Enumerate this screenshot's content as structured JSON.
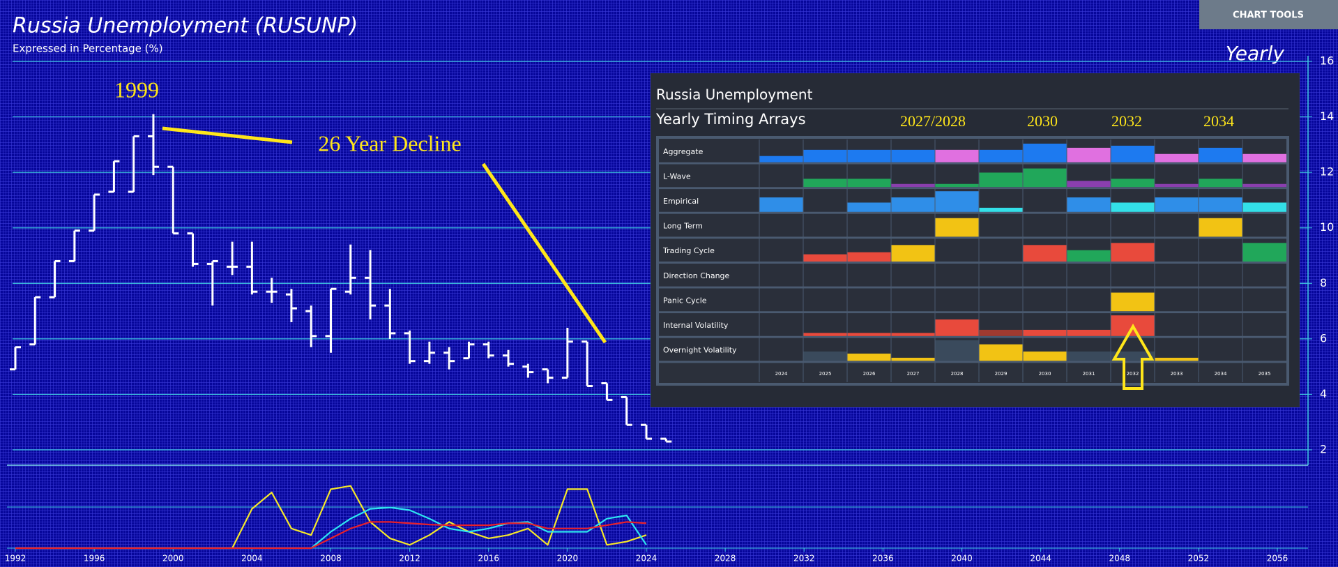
{
  "chart_data": [
    {
      "type": "ohlc",
      "title": "Russia Unemployment (RUSUNP)",
      "subtitle": "Expressed in Percentage (%)",
      "period": "Yearly",
      "button": "CHART TOOLS",
      "x": [
        1992,
        1993,
        1994,
        1995,
        1996,
        1997,
        1998,
        1999,
        2000,
        2001,
        2002,
        2003,
        2004,
        2005,
        2006,
        2007,
        2008,
        2009,
        2010,
        2011,
        2012,
        2013,
        2014,
        2015,
        2016,
        2017,
        2018,
        2019,
        2020,
        2021,
        2022,
        2023,
        2024,
        2025
      ],
      "open": [
        4.9,
        5.8,
        7.5,
        8.8,
        9.9,
        11.3,
        11.3,
        13.3,
        12.2,
        9.8,
        8.7,
        8.6,
        8.6,
        7.7,
        7.6,
        7.0,
        6.1,
        7.7,
        8.2,
        7.2,
        6.2,
        5.2,
        5.5,
        5.3,
        5.8,
        5.4,
        5.0,
        4.9,
        4.6,
        5.9,
        4.4,
        3.9,
        2.9,
        2.4
      ],
      "high": [
        5.7,
        7.5,
        8.8,
        9.9,
        11.2,
        12.4,
        13.3,
        14.1,
        12.2,
        9.8,
        8.8,
        9.5,
        9.5,
        8.2,
        7.8,
        7.2,
        7.8,
        9.4,
        9.2,
        7.8,
        6.3,
        5.9,
        5.7,
        5.9,
        5.9,
        5.6,
        5.1,
        4.9,
        6.4,
        5.9,
        4.4,
        3.9,
        2.9,
        2.4
      ],
      "low": [
        4.9,
        5.8,
        7.5,
        8.8,
        9.9,
        11.3,
        11.3,
        11.9,
        9.8,
        8.6,
        7.2,
        8.3,
        7.6,
        7.3,
        6.6,
        5.7,
        5.5,
        7.6,
        6.7,
        6.0,
        5.1,
        5.1,
        4.9,
        5.3,
        5.3,
        5.0,
        4.6,
        4.4,
        4.6,
        4.3,
        3.8,
        2.9,
        2.4,
        2.3
      ],
      "close": [
        5.7,
        7.5,
        8.8,
        9.9,
        11.2,
        12.4,
        13.3,
        12.2,
        9.8,
        8.7,
        8.8,
        8.6,
        7.7,
        7.7,
        7.1,
        6.1,
        7.8,
        8.2,
        7.2,
        6.2,
        5.2,
        5.5,
        5.2,
        5.8,
        5.4,
        5.1,
        4.8,
        4.6,
        5.9,
        4.3,
        3.8,
        2.9,
        2.4,
        2.3
      ],
      "color": "#ffffff",
      "xlim": [
        1991.9,
        2057.6
      ],
      "ylim": [
        2,
        16
      ],
      "xticks": [
        1992,
        1996,
        2000,
        2004,
        2008,
        2012,
        2016,
        2020,
        2024,
        2028,
        2032,
        2036,
        2040,
        2044,
        2048,
        2052,
        2056
      ],
      "yticks": [
        2,
        4,
        6,
        8,
        10,
        12,
        14,
        16
      ],
      "grid": true,
      "annotations": [
        "1999",
        "26 Year Decline"
      ]
    },
    {
      "type": "line",
      "xlim": [
        1991.9,
        2057.6
      ],
      "ylim": [
        0,
        100
      ],
      "x": [
        1992,
        1993,
        1994,
        1995,
        1996,
        1997,
        1998,
        1999,
        2000,
        2001,
        2002,
        2003,
        2004,
        2005,
        2006,
        2007,
        2008,
        2009,
        2010,
        2011,
        2012,
        2013,
        2014,
        2015,
        2016,
        2017,
        2018,
        2019,
        2020,
        2021,
        2022,
        2023,
        2024
      ],
      "series": [
        {
          "color": "#f5e82a",
          "values": [
            0,
            0,
            0,
            0,
            0,
            0,
            0,
            0,
            0,
            0,
            0,
            0,
            60,
            85,
            30,
            20,
            90,
            95,
            40,
            15,
            5,
            20,
            40,
            25,
            15,
            20,
            30,
            5,
            90,
            90,
            5,
            10,
            20
          ]
        },
        {
          "color": "#2ee6f0",
          "values": [
            0,
            0,
            0,
            0,
            0,
            0,
            0,
            0,
            0,
            0,
            0,
            0,
            0,
            0,
            0,
            0,
            25,
            45,
            60,
            62,
            58,
            45,
            30,
            25,
            30,
            38,
            40,
            25,
            25,
            25,
            45,
            50,
            5
          ]
        },
        {
          "color": "#e8202a",
          "values": [
            0,
            0,
            0,
            0,
            0,
            0,
            0,
            0,
            0,
            0,
            0,
            0,
            0,
            0,
            0,
            0,
            15,
            30,
            40,
            40,
            38,
            36,
            35,
            35,
            35,
            38,
            38,
            30,
            30,
            30,
            35,
            40,
            38
          ]
        }
      ]
    },
    {
      "type": "timing-array",
      "title": "Russia Unemployment",
      "subtitle": "Yearly Timing Arrays",
      "annotations": [
        "2027/2028",
        "2030",
        "2032",
        "2034"
      ],
      "columns": [
        "2024",
        "2025",
        "2026",
        "2027",
        "2028",
        "2029",
        "2030",
        "2031",
        "2032",
        "2033",
        "2034",
        "2035"
      ],
      "ylim": [
        0,
        1
      ],
      "rows": [
        {
          "label": "Aggregate",
          "values": [
            0.3,
            0.6,
            0.6,
            0.6,
            0.6,
            0.6,
            0.9,
            0.7,
            0.8,
            0.4,
            0.7,
            0.4
          ],
          "colors": [
            "#1d7af0",
            "#1d7af0",
            "#1d7af0",
            "#1d7af0",
            "#e070e0",
            "#1d7af0",
            "#1d7af0",
            "#e070e0",
            "#1d7af0",
            "#e070e0",
            "#1d7af0",
            "#e070e0"
          ]
        },
        {
          "label": "L-Wave",
          "values": [
            null,
            0.4,
            0.4,
            0.15,
            0.15,
            0.7,
            0.9,
            0.3,
            0.4,
            0.15,
            0.4,
            0.15
          ],
          "colors": [
            null,
            "#21a75a",
            "#21a75a",
            "#8a3fae",
            "#21a75a",
            "#21a75a",
            "#21a75a",
            "#8a3fae",
            "#21a75a",
            "#8a3fae",
            "#21a75a",
            "#8a3fae"
          ]
        },
        {
          "label": "Empirical",
          "values": [
            0.7,
            null,
            0.45,
            0.7,
            1.0,
            0.2,
            null,
            0.7,
            0.45,
            0.7,
            0.7,
            0.45
          ],
          "colors": [
            "#2f8ee8",
            null,
            "#2f8ee8",
            "#2f8ee8",
            "#2f8ee8",
            "#33e0e8",
            null,
            "#2f8ee8",
            "#33e0e8",
            "#2f8ee8",
            "#2f8ee8",
            "#33e0e8"
          ]
        },
        {
          "label": "Long Term",
          "values": [
            null,
            null,
            null,
            null,
            0.9,
            null,
            null,
            null,
            null,
            null,
            0.9,
            null
          ],
          "colors": [
            null,
            null,
            null,
            null,
            "#f2c314",
            null,
            null,
            null,
            null,
            null,
            "#f2c314",
            null
          ]
        },
        {
          "label": "Trading Cycle",
          "values": [
            null,
            0.35,
            0.45,
            0.8,
            null,
            null,
            0.8,
            0.55,
            0.9,
            null,
            null,
            0.9
          ],
          "colors": [
            null,
            "#e84a3c",
            "#e84a3c",
            "#f2c314",
            null,
            null,
            "#e84a3c",
            "#21a75a",
            "#e84a3c",
            null,
            null,
            "#21a75a"
          ]
        },
        {
          "label": "Direction Change",
          "values": [
            null,
            null,
            null,
            null,
            null,
            null,
            null,
            null,
            null,
            null,
            null,
            null
          ],
          "colors": [
            null,
            null,
            null,
            null,
            null,
            null,
            null,
            null,
            null,
            null,
            null,
            null
          ]
        },
        {
          "label": "Panic Cycle",
          "values": [
            null,
            null,
            null,
            null,
            null,
            null,
            null,
            null,
            0.9,
            null,
            null,
            null
          ],
          "colors": [
            null,
            null,
            null,
            null,
            null,
            null,
            null,
            null,
            "#f2c314",
            null,
            null,
            null
          ]
        },
        {
          "label": "Internal Volatility",
          "values": [
            null,
            0.15,
            0.15,
            0.15,
            0.8,
            0.3,
            0.3,
            0.3,
            1.0,
            null,
            null,
            null
          ],
          "colors": [
            null,
            "#e84a3c",
            "#e84a3c",
            "#e84a3c",
            "#e84a3c",
            "#a03a30",
            "#e84a3c",
            "#e84a3c",
            "#e84a3c",
            null,
            null,
            null
          ]
        },
        {
          "label": "Overnight Volatility",
          "values": [
            null,
            0.45,
            0.35,
            0.15,
            1.0,
            0.8,
            0.45,
            0.45,
            0.45,
            0.15,
            null,
            null
          ],
          "colors": [
            null,
            "#3a4a5c",
            "#f2c314",
            "#f2c314",
            "#3a4a5c",
            "#f2c314",
            "#f2c314",
            "#3a4a5c",
            "#3a4a5c",
            "#f2c314",
            null,
            null
          ]
        }
      ]
    }
  ]
}
